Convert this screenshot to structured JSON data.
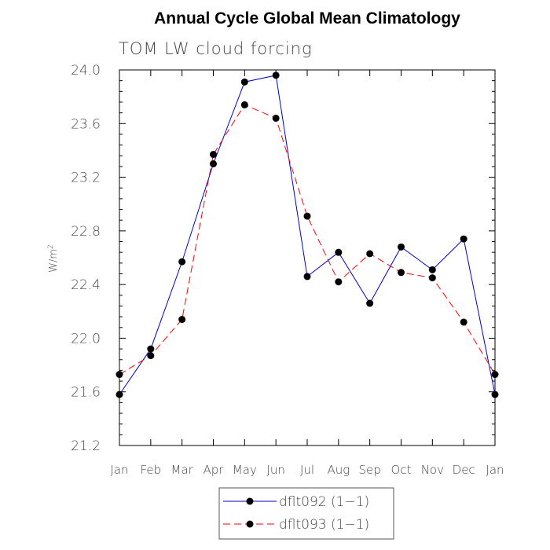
{
  "chart_data": {
    "type": "line",
    "title": "Annual Cycle Global Mean Climatology",
    "subtitle": "TOM LW cloud forcing",
    "ylabel": "W/m",
    "ylabel_superscript": "2",
    "xlabel": "",
    "categories": [
      "Jan",
      "Feb",
      "Mar",
      "Apr",
      "May",
      "Jun",
      "Jul",
      "Aug",
      "Sep",
      "Oct",
      "Nov",
      "Dec",
      "Jan"
    ],
    "ylim": [
      21.2,
      24.0
    ],
    "yticks": [
      "21.2",
      "21.6",
      "22.0",
      "22.4",
      "22.8",
      "23.2",
      "23.6",
      "24.0"
    ],
    "grid": false,
    "legend_position": "bottom-center",
    "series": [
      {
        "name": "dflt092 (1−1)",
        "color": "#0000cc",
        "dash": "solid",
        "values": [
          21.58,
          21.92,
          22.57,
          23.3,
          23.91,
          23.96,
          22.46,
          22.64,
          22.26,
          22.68,
          22.51,
          22.74,
          21.58
        ]
      },
      {
        "name": "dflt093 (1−1)",
        "color": "#ff0000",
        "dash": "dashed",
        "values": [
          21.73,
          21.87,
          22.14,
          23.37,
          23.74,
          23.64,
          22.91,
          22.42,
          22.63,
          22.49,
          22.45,
          22.12,
          21.73
        ]
      }
    ]
  }
}
